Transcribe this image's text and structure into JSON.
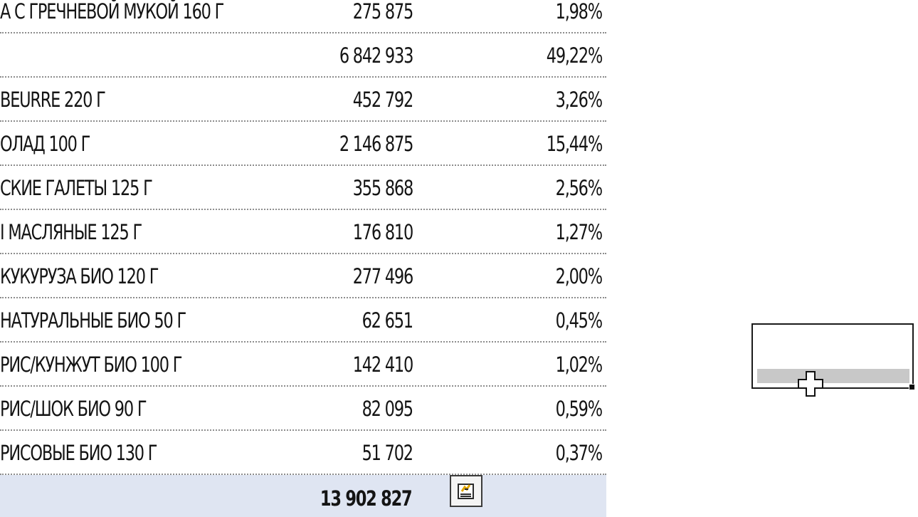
{
  "sheet": {
    "rows": [
      {
        "name": "А С ГРЕЧНЕВОЙ МУКОЙ 160 Г",
        "value": "275 875",
        "percent": "1,98%"
      },
      {
        "name": "",
        "value": "6 842 933",
        "percent": "49,22%"
      },
      {
        "name": "BEURRE 220 Г",
        "value": "452 792",
        "percent": "3,26%"
      },
      {
        "name": "ОЛАД 100 Г",
        "value": "2 146 875",
        "percent": "15,44%"
      },
      {
        "name": "СКИЕ ГАЛЕТЫ 125 Г",
        "value": "355 868",
        "percent": "2,56%"
      },
      {
        "name": "І МАСЛЯНЫЕ 125 Г",
        "value": "176 810",
        "percent": "1,27%"
      },
      {
        "name": "КУКУРУЗА БИО 120 Г",
        "value": "277 496",
        "percent": "2,00%"
      },
      {
        "name": "НАТУРАЛЬНЫЕ БИО 50 Г",
        "value": "62 651",
        "percent": "0,45%"
      },
      {
        "name": "РИС/КУНЖУТ БИО 100 Г",
        "value": "142 410",
        "percent": "1,02%"
      },
      {
        "name": "РИС/ШОК БИО 90 Г",
        "value": "82 095",
        "percent": "0,59%"
      },
      {
        "name": "РИСОВЫЕ БИО 130 Г",
        "value": "51 702",
        "percent": "0,37%"
      }
    ],
    "total": {
      "value": "13 902 827"
    }
  },
  "icons": {
    "quick_analysis": "quick-analysis-icon",
    "cursor": "cell-select-cursor-icon"
  },
  "colors": {
    "total_row_background": "#dfe5f2",
    "selection_border": "#1a1a1a",
    "text": "#141414"
  }
}
